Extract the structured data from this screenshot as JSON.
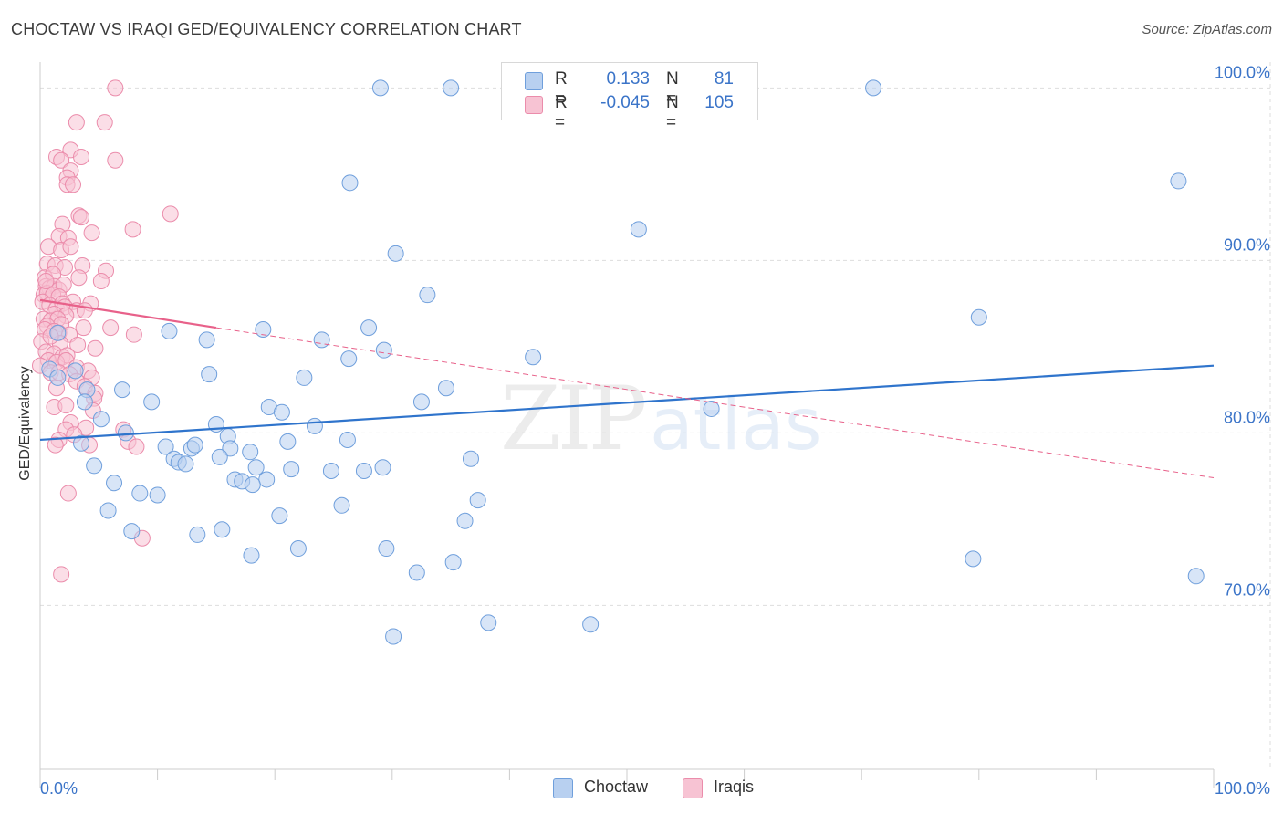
{
  "title": "CHOCTAW VS IRAQI GED/EQUIVALENCY CORRELATION CHART",
  "source": "Source: ZipAtlas.com",
  "watermark": {
    "zip": "ZIP",
    "atlas": "atlas"
  },
  "legend_top": {
    "rows": [
      {
        "r_label": "R =",
        "r_value": "0.133",
        "n_label": "N =",
        "n_value": "81"
      },
      {
        "r_label": "R =",
        "r_value": "-0.045",
        "n_label": "N =",
        "n_value": "105"
      }
    ]
  },
  "legend_bottom": {
    "items": [
      "Choctaw",
      "Iraqis"
    ]
  },
  "colors": {
    "choctaw_fill": "#b8d0f0",
    "choctaw_stroke": "#6f9fdc",
    "choctaw_line": "#2f74cc",
    "iraqis_fill": "#f7c3d3",
    "iraqis_stroke": "#eb8cab",
    "iraqis_line": "#e8618a",
    "axis_label": "#3b74c8",
    "grid": "#dddddd"
  },
  "chart_data": {
    "type": "scatter",
    "title": "CHOCTAW VS IRAQI GED/EQUIVALENCY CORRELATION CHART",
    "xlabel": "",
    "ylabel": "GED/Equivalency",
    "xlim": [
      0,
      100
    ],
    "ylim": [
      60.5,
      101.5
    ],
    "x_tick_labels": [
      "0.0%",
      "100.0%"
    ],
    "y_ticks": [
      70,
      80,
      90,
      100
    ],
    "y_tick_labels": [
      "70.0%",
      "80.0%",
      "90.0%",
      "100.0%"
    ],
    "series": [
      {
        "name": "Choctaw",
        "R": 0.133,
        "N": 81,
        "trend": {
          "x0": 0,
          "y0": 79.6,
          "x1": 100,
          "y1": 83.9
        },
        "points": [
          [
            29,
            100
          ],
          [
            35,
            100
          ],
          [
            71,
            100
          ],
          [
            97,
            94.6
          ],
          [
            26.4,
            94.5
          ],
          [
            51,
            91.8
          ],
          [
            30.3,
            90.4
          ],
          [
            33,
            88
          ],
          [
            80,
            86.7
          ],
          [
            1.5,
            85.8
          ],
          [
            11,
            85.9
          ],
          [
            14.2,
            85.4
          ],
          [
            19,
            86
          ],
          [
            28,
            86.1
          ],
          [
            24,
            85.4
          ],
          [
            26.3,
            84.3
          ],
          [
            42,
            84.4
          ],
          [
            29.3,
            84.8
          ],
          [
            0.8,
            83.7
          ],
          [
            1.5,
            83.2
          ],
          [
            3,
            83.6
          ],
          [
            4,
            82.5
          ],
          [
            7,
            82.5
          ],
          [
            14.4,
            83.4
          ],
          [
            22.5,
            83.2
          ],
          [
            34.6,
            82.6
          ],
          [
            3.8,
            81.8
          ],
          [
            9.5,
            81.8
          ],
          [
            19.5,
            81.5
          ],
          [
            20.6,
            81.2
          ],
          [
            32.5,
            81.8
          ],
          [
            57.2,
            81.4
          ],
          [
            5.2,
            80.8
          ],
          [
            15,
            80.5
          ],
          [
            23.4,
            80.4
          ],
          [
            7.3,
            80
          ],
          [
            12.9,
            79.1
          ],
          [
            13.2,
            79.3
          ],
          [
            16,
            79.8
          ],
          [
            21.1,
            79.5
          ],
          [
            26.2,
            79.6
          ],
          [
            3.5,
            79.4
          ],
          [
            10.7,
            79.2
          ],
          [
            16.2,
            79.1
          ],
          [
            11.4,
            78.5
          ],
          [
            11.8,
            78.3
          ],
          [
            12.4,
            78.2
          ],
          [
            15.3,
            78.6
          ],
          [
            17.9,
            78.9
          ],
          [
            18.4,
            78
          ],
          [
            21.4,
            77.9
          ],
          [
            24.8,
            77.8
          ],
          [
            27.6,
            77.8
          ],
          [
            29.2,
            78
          ],
          [
            36.7,
            78.5
          ],
          [
            4.6,
            78.1
          ],
          [
            6.3,
            77.1
          ],
          [
            16.6,
            77.3
          ],
          [
            17.2,
            77.2
          ],
          [
            19.3,
            77.3
          ],
          [
            18.1,
            77
          ],
          [
            8.5,
            76.5
          ],
          [
            10,
            76.4
          ],
          [
            25.7,
            75.8
          ],
          [
            37.3,
            76.1
          ],
          [
            5.8,
            75.5
          ],
          [
            20.4,
            75.2
          ],
          [
            36.2,
            74.9
          ],
          [
            7.8,
            74.3
          ],
          [
            13.4,
            74.1
          ],
          [
            15.5,
            74.4
          ],
          [
            22,
            73.3
          ],
          [
            29.5,
            73.3
          ],
          [
            18,
            72.9
          ],
          [
            35.2,
            72.5
          ],
          [
            79.5,
            72.7
          ],
          [
            32.1,
            71.9
          ],
          [
            98.5,
            71.7
          ],
          [
            38.2,
            69
          ],
          [
            46.9,
            68.9
          ],
          [
            30.1,
            68.2
          ]
        ]
      },
      {
        "name": "Iraqis",
        "R": -0.045,
        "N": 105,
        "trend": {
          "x0": 0,
          "y0": 87.7,
          "x1": 15,
          "y1": 86.1
        },
        "trend_dashed": {
          "x0": 15,
          "y0": 86.1,
          "x1": 100,
          "y1": 77.4
        },
        "points": [
          [
            6.4,
            100
          ],
          [
            3.1,
            98
          ],
          [
            5.5,
            98
          ],
          [
            2.6,
            96.4
          ],
          [
            1.4,
            96
          ],
          [
            3.5,
            96
          ],
          [
            1.8,
            95.8
          ],
          [
            6.4,
            95.8
          ],
          [
            2.6,
            95.2
          ],
          [
            2.3,
            94.8
          ],
          [
            2.3,
            94.4
          ],
          [
            2.8,
            94.4
          ],
          [
            11.1,
            92.7
          ],
          [
            3.3,
            92.6
          ],
          [
            3.5,
            92.5
          ],
          [
            1.9,
            92.1
          ],
          [
            7.9,
            91.8
          ],
          [
            1.6,
            91.4
          ],
          [
            2.4,
            91.3
          ],
          [
            4.4,
            91.6
          ],
          [
            0.7,
            90.8
          ],
          [
            1.8,
            90.6
          ],
          [
            2.6,
            90.8
          ],
          [
            0.6,
            89.8
          ],
          [
            1.3,
            89.7
          ],
          [
            2.1,
            89.6
          ],
          [
            3.6,
            89.7
          ],
          [
            5.6,
            89.4
          ],
          [
            0.4,
            89
          ],
          [
            1.1,
            89.2
          ],
          [
            3.3,
            89
          ],
          [
            5.2,
            88.8
          ],
          [
            0.5,
            88.5
          ],
          [
            0.8,
            88.4
          ],
          [
            1.2,
            88.5
          ],
          [
            1.6,
            88.3
          ],
          [
            2,
            88.6
          ],
          [
            0.3,
            88
          ],
          [
            0.6,
            88.1
          ],
          [
            1.1,
            88
          ],
          [
            1.6,
            87.9
          ],
          [
            2.8,
            87.6
          ],
          [
            4.3,
            87.5
          ],
          [
            0.2,
            87.6
          ],
          [
            0.8,
            87.4
          ],
          [
            1.4,
            87.2
          ],
          [
            1.9,
            87.5
          ],
          [
            2.1,
            87.3
          ],
          [
            3.1,
            87.1
          ],
          [
            1.2,
            86.9
          ],
          [
            2.2,
            86.8
          ],
          [
            3.8,
            87.1
          ],
          [
            0.3,
            86.6
          ],
          [
            0.9,
            86.5
          ],
          [
            1.5,
            86.6
          ],
          [
            1.8,
            86.3
          ],
          [
            0.6,
            86.2
          ],
          [
            3.7,
            86.1
          ],
          [
            6,
            86.1
          ],
          [
            0.4,
            86
          ],
          [
            1.2,
            85.9
          ],
          [
            1.6,
            85.8
          ],
          [
            2.5,
            85.7
          ],
          [
            8,
            85.7
          ],
          [
            0.1,
            85.3
          ],
          [
            1.7,
            85.2
          ],
          [
            3.2,
            85.1
          ],
          [
            4.7,
            84.9
          ],
          [
            0.5,
            84.7
          ],
          [
            1.2,
            84.6
          ],
          [
            1.9,
            84.4
          ],
          [
            2.3,
            84.5
          ],
          [
            0.7,
            84.2
          ],
          [
            1.4,
            84.1
          ],
          [
            2.2,
            84.2
          ],
          [
            0,
            83.9
          ],
          [
            3.1,
            83.8
          ],
          [
            4.1,
            83.6
          ],
          [
            0.9,
            83.5
          ],
          [
            1.6,
            83.5
          ],
          [
            2.5,
            83.4
          ],
          [
            4.4,
            83.2
          ],
          [
            3.1,
            83
          ],
          [
            3.8,
            82.7
          ],
          [
            1.4,
            82.6
          ],
          [
            4.7,
            82.3
          ],
          [
            4.6,
            82
          ],
          [
            1.2,
            81.5
          ],
          [
            2.2,
            81.6
          ],
          [
            4.5,
            81.3
          ],
          [
            2.6,
            80.6
          ],
          [
            2.2,
            80.2
          ],
          [
            3.9,
            80.3
          ],
          [
            2.9,
            79.9
          ],
          [
            7.1,
            80.2
          ],
          [
            7.5,
            79.5
          ],
          [
            1.6,
            79.6
          ],
          [
            4.2,
            79.3
          ],
          [
            8.2,
            79.2
          ],
          [
            1.3,
            79.3
          ],
          [
            2.4,
            76.5
          ],
          [
            8.7,
            73.9
          ],
          [
            1.8,
            71.8
          ],
          [
            0.5,
            88.8
          ],
          [
            0.9,
            85.6
          ]
        ]
      }
    ]
  }
}
